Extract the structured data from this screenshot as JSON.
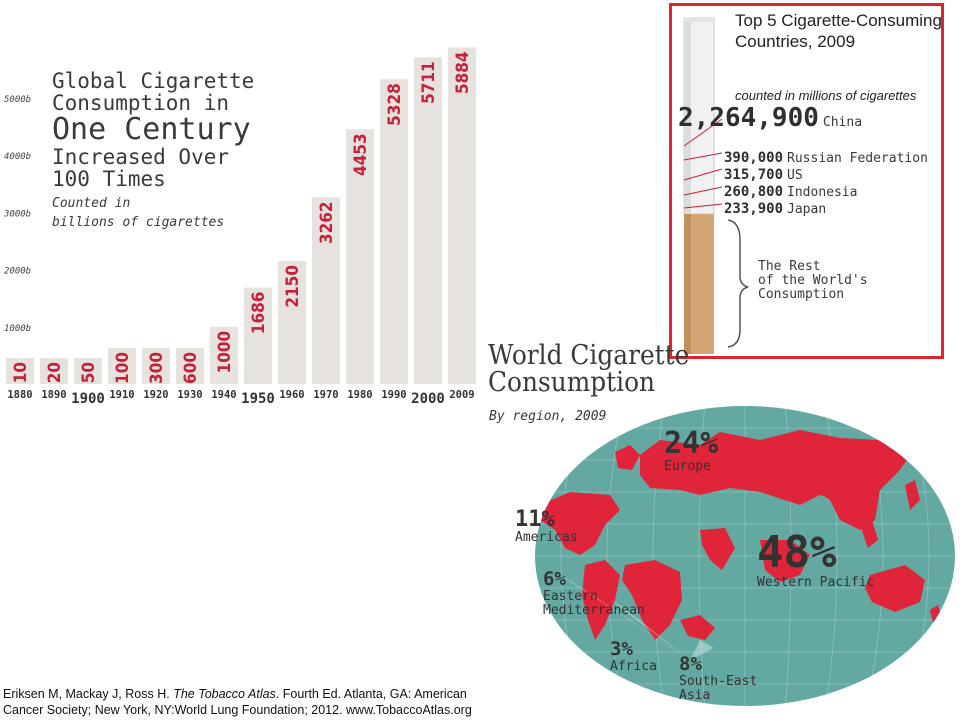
{
  "chart_data": [
    {
      "type": "bar",
      "title": "Global Cigarette Consumption in One Century Increased Over 100 Times",
      "subtitle": "Counted in billions of cigarettes",
      "categories": [
        "1880",
        "1890",
        "1900",
        "1910",
        "1920",
        "1930",
        "1940",
        "1950",
        "1960",
        "1970",
        "1980",
        "1990",
        "2000",
        "2009"
      ],
      "values": [
        10,
        20,
        50,
        100,
        300,
        600,
        1000,
        1686,
        2150,
        3262,
        4453,
        5328,
        5711,
        5884
      ],
      "y_ticks": [
        "1000b",
        "2000b",
        "3000b",
        "4000b",
        "5000b"
      ],
      "ylim": [
        0,
        6000
      ],
      "grid": false,
      "bar_color": "#e6e2dd",
      "label_color": "#c8203a"
    },
    {
      "type": "bar",
      "title": "Top 5 Cigarette-Consuming Countries, 2009",
      "subtitle": "counted in millions of cigarettes",
      "categories": [
        "China",
        "Russian Federation",
        "US",
        "Indonesia",
        "Japan"
      ],
      "values": [
        "2,264,900",
        "390,000",
        "315,700",
        "260,800",
        "233,900"
      ],
      "rest_label": "The Rest of the World's Consumption"
    },
    {
      "type": "pie",
      "title": "World Cigarette Consumption",
      "subtitle": "By region, 2009",
      "categories": [
        "Europe",
        "Americas",
        "Eastern Mediterranean",
        "Africa",
        "South-East Asia",
        "Western Pacific"
      ],
      "values": [
        24,
        11,
        6,
        3,
        8,
        48
      ],
      "labels": [
        "24%",
        "11%",
        "6%",
        "3%",
        "8%",
        "48%"
      ]
    }
  ],
  "bar_title": {
    "line1": "Global Cigarette",
    "line2": "Consumption in",
    "line3": "One Century",
    "line4": "Increased Over",
    "line5": "100 Times",
    "sub1": "Counted in",
    "sub2": "billions of cigarettes"
  },
  "top5": {
    "title": "Top 5 Cigarette-Consuming Countries, 2009",
    "sub": "counted in millions of cigarettes",
    "rest": [
      "The Rest",
      "of the World's",
      "Consumption"
    ]
  },
  "map": {
    "title1": "World Cigarette",
    "title2": "Consumption",
    "sub": "By region, 2009"
  },
  "colors": {
    "accent_red": "#c8203a",
    "box_red": "#e0242b",
    "ocean": "#63a9a1",
    "land": "#e0243a"
  },
  "citation": {
    "line1_pre": "Eriksen M, Mackay J, Ross H. ",
    "line1_italic": "The Tobacco Atlas",
    "line1_post": ". Fourth Ed. Atlanta, GA: American",
    "line2": "Cancer Society; New York, NY:World Lung Foundation; 2012. www.TobaccoAtlas.org"
  }
}
